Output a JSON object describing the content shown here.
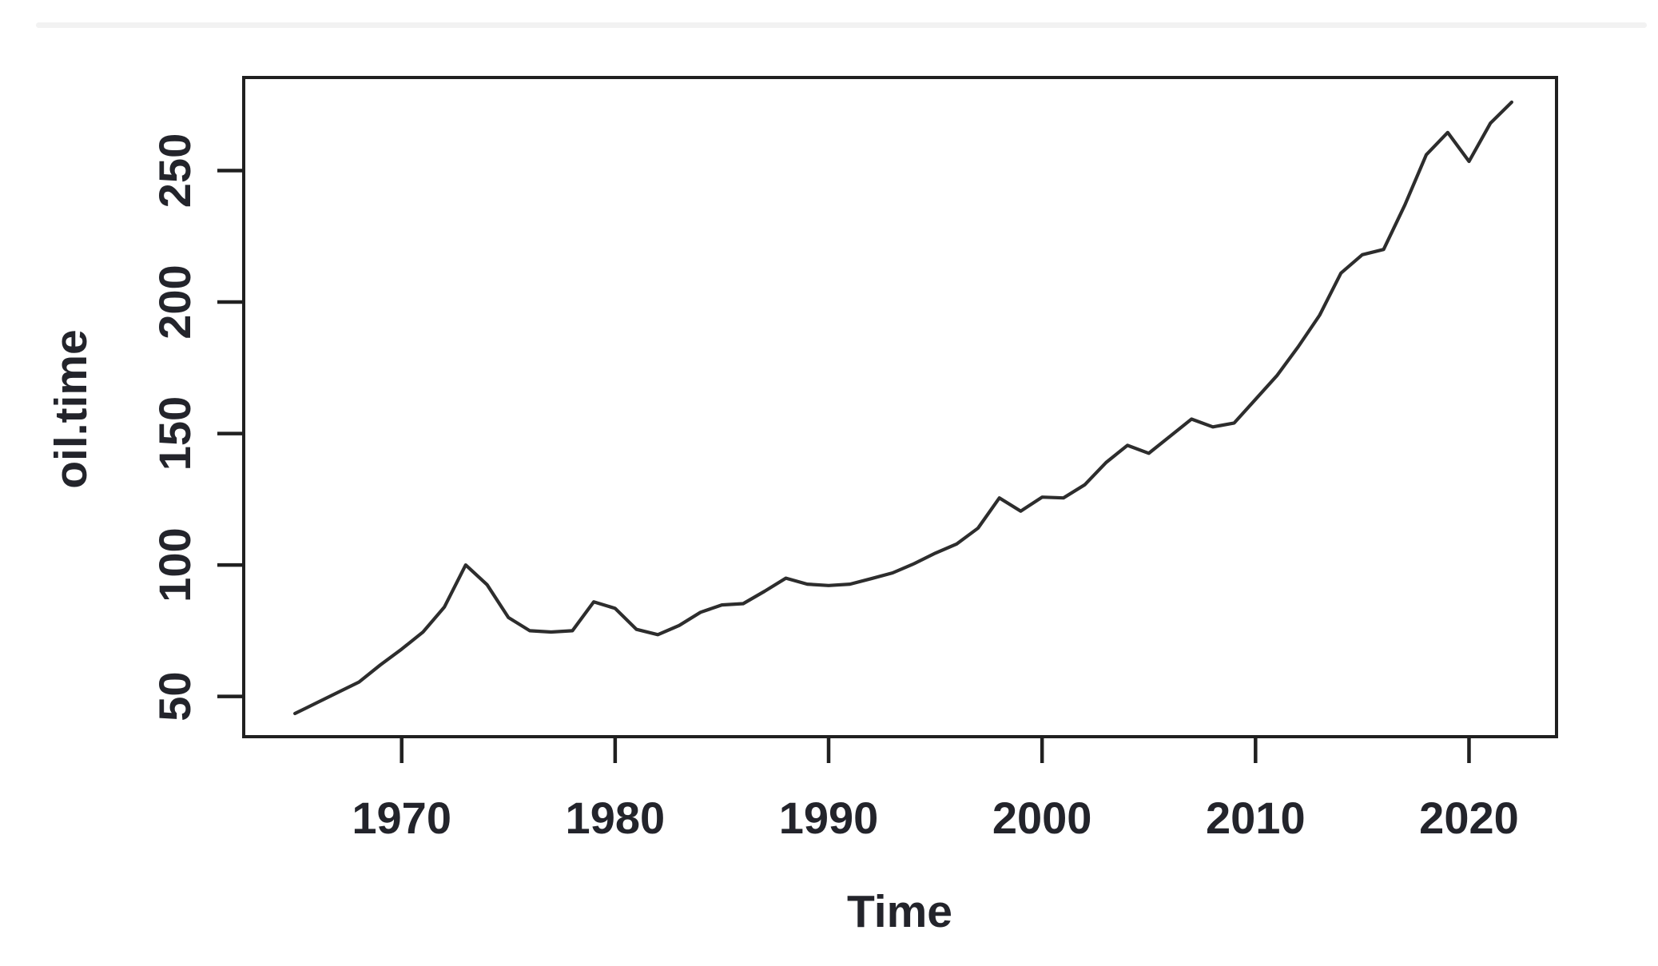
{
  "page": {
    "background": "#ffffff",
    "top_rule_color": "#f2f2f2"
  },
  "chart_data": {
    "type": "line",
    "title": "",
    "xlabel": "Time",
    "ylabel": "oil.time",
    "x_ticks": [
      1970,
      1980,
      1990,
      2000,
      2010,
      2020
    ],
    "y_ticks": [
      50,
      100,
      150,
      200,
      250
    ],
    "xlim": [
      1962.6,
      2024.1
    ],
    "ylim": [
      34.7,
      285.4
    ],
    "grid": false,
    "legend": "none",
    "line_color": "#2d2d2d",
    "axis_color": "#202020",
    "text_color": "#23242b",
    "series": [
      {
        "name": "oil.time",
        "x": [
          1965,
          1966,
          1967,
          1968,
          1969,
          1970,
          1971,
          1972,
          1973,
          1974,
          1975,
          1976,
          1977,
          1978,
          1979,
          1980,
          1981,
          1982,
          1983,
          1984,
          1985,
          1986,
          1987,
          1988,
          1989,
          1990,
          1991,
          1992,
          1993,
          1994,
          1995,
          1996,
          1997,
          1998,
          1999,
          2000,
          2001,
          2002,
          2003,
          2004,
          2005,
          2006,
          2007,
          2008,
          2009,
          2010,
          2011,
          2012,
          2013,
          2014,
          2015,
          2016,
          2017,
          2018,
          2019,
          2020,
          2021,
          2022
        ],
        "values": [
          43.5,
          47.5,
          51.5,
          55.5,
          62,
          68,
          74.5,
          84,
          100,
          92.5,
          80,
          75,
          74.5,
          75,
          86,
          83.5,
          75.5,
          73.5,
          77,
          82,
          84.8,
          85.3,
          90,
          95,
          92.7,
          92.2,
          92.7,
          94.8,
          97,
          100.5,
          104.5,
          108,
          114,
          125.5,
          120.5,
          125.8,
          125.5,
          130.5,
          139,
          145.5,
          142.5,
          149,
          155.5,
          152.5,
          154,
          163,
          172,
          183,
          195,
          211,
          218,
          220,
          237,
          256,
          264.5,
          253.5,
          268,
          276
        ]
      }
    ]
  }
}
